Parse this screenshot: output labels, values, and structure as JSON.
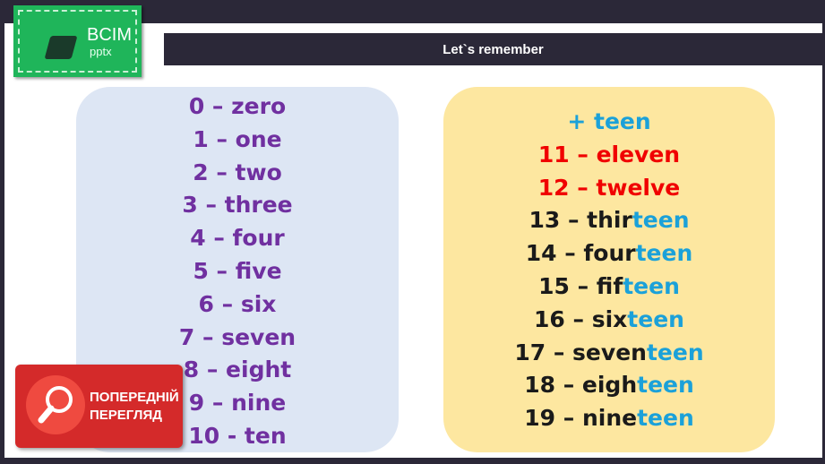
{
  "logo": {
    "line1": "BCIM",
    "line2": "pptx"
  },
  "title": "Let`s remember",
  "left_list": [
    "0 – zero",
    "1 – one",
    "2 – two",
    "3 – three",
    "4 – four",
    "5 – five",
    "6 – six",
    "7 – seven",
    "8 – eight",
    "9 – nine",
    "10 - ten"
  ],
  "right_header": "+ teen",
  "right_list": [
    {
      "text": "11 – eleven",
      "style": "red"
    },
    {
      "text": "12 – twelve",
      "style": "red"
    },
    {
      "pre": "13 – thir",
      "suf": "teen"
    },
    {
      "pre": "14 – four",
      "suf": "teen"
    },
    {
      "pre": "15 – fif",
      "suf": "teen"
    },
    {
      "pre": "16 – six",
      "suf": "teen"
    },
    {
      "pre": "17 – seven",
      "suf": "teen"
    },
    {
      "pre": "18 – eigh",
      "suf": "teen"
    },
    {
      "pre": "19 – nine",
      "suf": "teen"
    }
  ],
  "preview": {
    "line1": "ПОПЕРЕДНІЙ",
    "line2": "ПЕРЕГЛЯД"
  },
  "colors": {
    "purple": "#7030a0",
    "blue": "#1ba1d9",
    "red": "#f00000",
    "dark": "#2b2838"
  }
}
